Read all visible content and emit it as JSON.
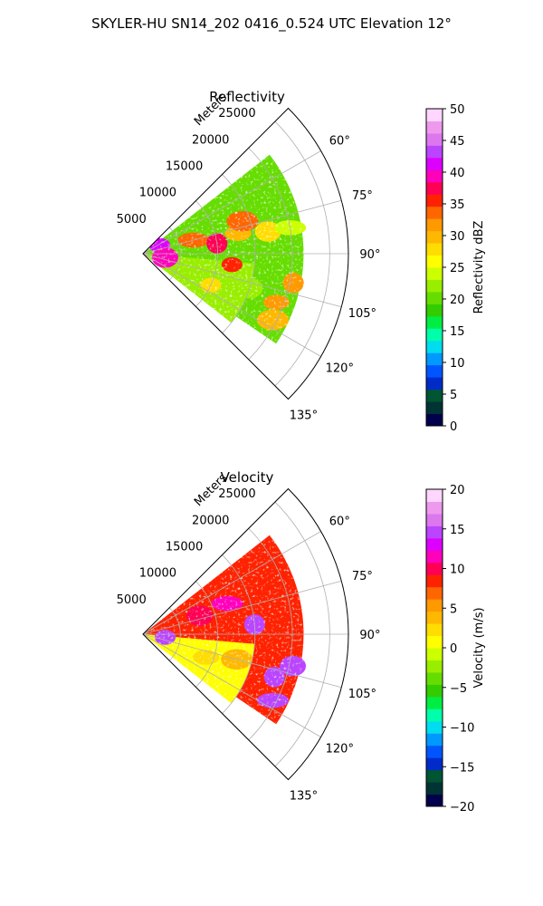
{
  "figure_title": "SKYLER-HU  SN14_202  0416_0.524 UTC Elevation 12°",
  "chart_data": [
    {
      "type": "heatmap",
      "projection": "polar sector",
      "title": "Reflectivity",
      "radial_label": "Meters",
      "radial_ticks": [
        5000,
        10000,
        15000,
        20000,
        25000
      ],
      "radial_tick_labels": [
        "5000",
        "10000",
        "15000",
        "20000",
        "25000"
      ],
      "radial_range": [
        0,
        27500
      ],
      "angle_ticks": [
        60,
        75,
        90,
        105,
        120,
        135
      ],
      "angle_tick_labels": [
        "60°",
        "75°",
        "90°",
        "105°",
        "120°",
        "135°"
      ],
      "angle_range": [
        45,
        135
      ],
      "grid": true,
      "colorbar": {
        "label": "Reflectivity dBZ",
        "range": [
          0,
          50
        ],
        "ticks": [
          0,
          5,
          10,
          15,
          20,
          25,
          30,
          35,
          40,
          45,
          50
        ],
        "tick_labels": [
          "0",
          "5",
          "10",
          "15",
          "20",
          "25",
          "30",
          "35",
          "40",
          "45",
          "50"
        ],
        "colors": [
          "#00004c",
          "#003333",
          "#005533",
          "#002bc8",
          "#0055ff",
          "#0099ff",
          "#00ddee",
          "#00ffaa",
          "#00ee44",
          "#33cc00",
          "#66dd00",
          "#99ee00",
          "#ccff00",
          "#ffff00",
          "#ffdd00",
          "#ffb800",
          "#ff9900",
          "#ff6600",
          "#ff2200",
          "#ff0055",
          "#ff00bb",
          "#dd00ff",
          "#bb44ff",
          "#dd77ee",
          "#ee99ee",
          "#ffd6ff"
        ]
      },
      "echo_cells": [
        {
          "r": 2500,
          "az": 64,
          "dz": 42
        },
        {
          "r": 3000,
          "az": 100,
          "dz": 40
        },
        {
          "r": 7000,
          "az": 75,
          "dz": 34
        },
        {
          "r": 10000,
          "az": 82,
          "dz": 38
        },
        {
          "r": 13000,
          "az": 78,
          "dz": 30
        },
        {
          "r": 14000,
          "az": 72,
          "dz": 34
        },
        {
          "r": 12000,
          "az": 97,
          "dz": 36
        },
        {
          "r": 17000,
          "az": 80,
          "dz": 28
        },
        {
          "r": 20000,
          "az": 80,
          "dz": 24
        },
        {
          "r": 20500,
          "az": 101,
          "dz": 32
        },
        {
          "r": 19000,
          "az": 110,
          "dz": 32
        },
        {
          "r": 19500,
          "az": 117,
          "dz": 30
        },
        {
          "r": 10000,
          "az": 115,
          "dz": 28
        },
        {
          "r": 15000,
          "az": 108,
          "dz": 22
        }
      ]
    },
    {
      "type": "heatmap",
      "projection": "polar sector",
      "title": "Velocity",
      "radial_label": "Meters",
      "radial_ticks": [
        5000,
        10000,
        15000,
        20000,
        25000
      ],
      "radial_tick_labels": [
        "5000",
        "10000",
        "15000",
        "20000",
        "25000"
      ],
      "radial_range": [
        0,
        27500
      ],
      "angle_ticks": [
        60,
        75,
        90,
        105,
        120,
        135
      ],
      "angle_tick_labels": [
        "60°",
        "75°",
        "90°",
        "105°",
        "120°",
        "135°"
      ],
      "angle_range": [
        45,
        135
      ],
      "grid": true,
      "colorbar": {
        "label": "Velocity (m/s)",
        "range": [
          -20,
          20
        ],
        "ticks": [
          -20,
          -15,
          -10,
          -5,
          0,
          5,
          10,
          15,
          20
        ],
        "tick_labels": [
          "−20",
          "−15",
          "−10",
          "−5",
          "0",
          "5",
          "10",
          "15",
          "20"
        ],
        "colors": [
          "#00004c",
          "#003333",
          "#005533",
          "#002bc8",
          "#0055ff",
          "#0099ff",
          "#00ddee",
          "#00ffaa",
          "#00ee44",
          "#33cc00",
          "#66dd00",
          "#99ee00",
          "#ccff00",
          "#ffff00",
          "#ffdd00",
          "#ffb800",
          "#ff9900",
          "#ff6600",
          "#ff2200",
          "#ff0055",
          "#ff00bb",
          "#dd00ff",
          "#bb44ff",
          "#dd77ee",
          "#ee99ee",
          "#ffd6ff"
        ]
      },
      "echo_cells": [
        {
          "r": 3000,
          "az": 98,
          "dz": 14
        },
        {
          "r": 8000,
          "az": 72,
          "dz": 10
        },
        {
          "r": 12000,
          "az": 70,
          "dz": 12
        },
        {
          "r": 15000,
          "az": 85,
          "dz": 14
        },
        {
          "r": 9000,
          "az": 110,
          "dz": 2
        },
        {
          "r": 13000,
          "az": 105,
          "dz": 4
        },
        {
          "r": 17000,
          "az": 112,
          "dz": 9
        },
        {
          "r": 20500,
          "az": 102,
          "dz": 15
        },
        {
          "r": 19500,
          "az": 117,
          "dz": 14
        },
        {
          "r": 18500,
          "az": 108,
          "dz": 14
        }
      ]
    }
  ]
}
